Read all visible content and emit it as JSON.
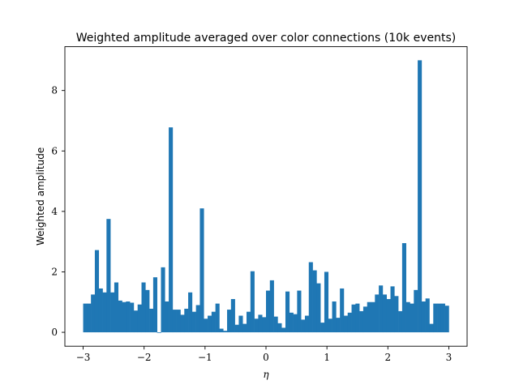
{
  "chart_data": {
    "type": "bar",
    "title": "Weighted amplitude averaged over color connections (10k events)",
    "xlabel": "η",
    "ylabel": "Weighted amplitude",
    "xlim": [
      -3.3,
      3.3
    ],
    "ylim": [
      -0.46,
      9.45
    ],
    "bin_range": [
      -3,
      3
    ],
    "grid": false,
    "bar_color": "#1f77b4",
    "x_ticks": [
      {
        "value": -3,
        "label": "−3"
      },
      {
        "value": -2,
        "label": "−2"
      },
      {
        "value": -1,
        "label": "−1"
      },
      {
        "value": 0,
        "label": "0"
      },
      {
        "value": 1,
        "label": "1"
      },
      {
        "value": 2,
        "label": "2"
      },
      {
        "value": 3,
        "label": "3"
      }
    ],
    "y_ticks": [
      {
        "value": 0,
        "label": "0"
      },
      {
        "value": 2,
        "label": "2"
      },
      {
        "value": 4,
        "label": "4"
      },
      {
        "value": 6,
        "label": "6"
      },
      {
        "value": 8,
        "label": "8"
      }
    ],
    "values": [
      0.95,
      0.95,
      1.25,
      2.72,
      1.45,
      1.32,
      3.75,
      1.32,
      1.65,
      1.05,
      1.0,
      1.02,
      0.98,
      0.72,
      0.92,
      1.65,
      1.4,
      0.78,
      1.82,
      -0.02,
      2.15,
      1.02,
      6.78,
      0.75,
      0.75,
      0.58,
      0.78,
      1.32,
      0.68,
      0.9,
      4.1,
      0.45,
      0.55,
      0.68,
      0.95,
      0.12,
      0.05,
      0.75,
      1.1,
      0.25,
      0.55,
      0.28,
      0.68,
      2.02,
      0.45,
      0.58,
      0.5,
      1.38,
      1.72,
      0.52,
      0.3,
      0.15,
      1.35,
      0.65,
      0.6,
      1.38,
      0.42,
      0.55,
      2.32,
      2.05,
      1.62,
      0.32,
      2.0,
      0.45,
      1.02,
      0.48,
      1.45,
      0.55,
      0.65,
      0.92,
      0.95,
      0.7,
      0.85,
      1.0,
      1.0,
      1.25,
      1.55,
      1.25,
      1.1,
      1.52,
      1.2,
      0.7,
      2.95,
      1.0,
      0.95,
      1.4,
      9.0,
      1.02,
      1.12,
      0.28,
      0.95,
      0.95,
      0.95,
      0.88
    ]
  }
}
